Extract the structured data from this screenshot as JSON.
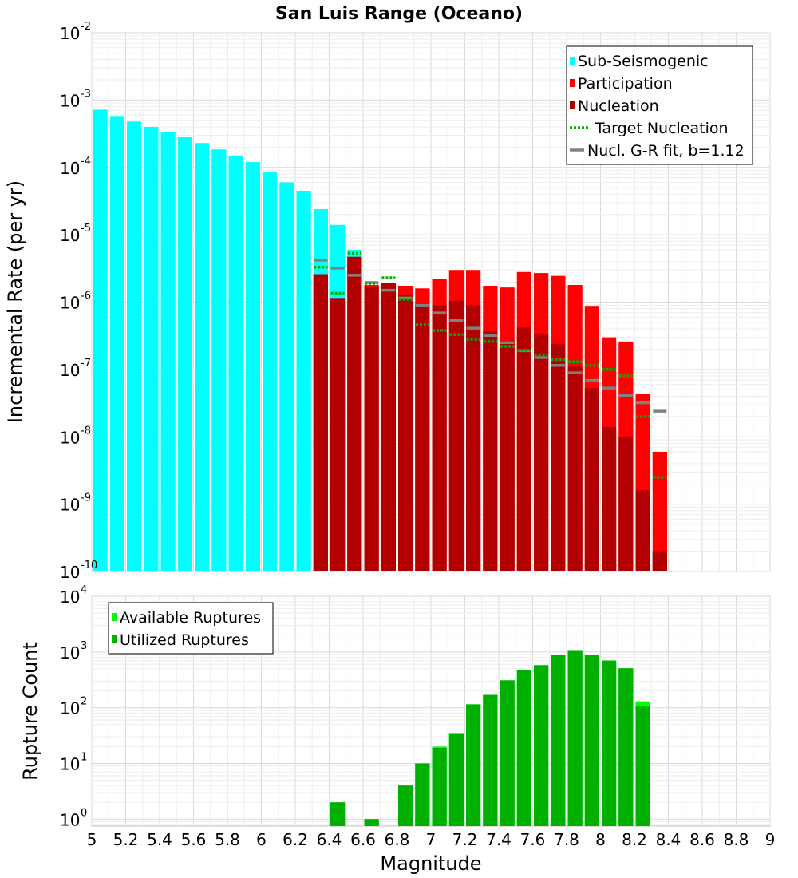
{
  "chart_data": [
    {
      "type": "bar",
      "title": "San Luis Range (Oceano)",
      "ylabel": "Incremental Rate (per yr)",
      "xlabel": "",
      "yscale": "log",
      "ylim": [
        1e-10,
        0.01
      ],
      "xlim": [
        5,
        9
      ],
      "y_ticks": [
        {
          "base": "10",
          "exp": "-10"
        },
        {
          "base": "10",
          "exp": "-9"
        },
        {
          "base": "10",
          "exp": "-8"
        },
        {
          "base": "10",
          "exp": "-7"
        },
        {
          "base": "10",
          "exp": "-6"
        },
        {
          "base": "10",
          "exp": "-5"
        },
        {
          "base": "10",
          "exp": "-4"
        },
        {
          "base": "10",
          "exp": "-3"
        },
        {
          "base": "10",
          "exp": "-2"
        }
      ],
      "legend_position": "top-right",
      "legend": [
        {
          "label": "Sub-Seismogenic",
          "color": "#00ffff",
          "symbol": "box"
        },
        {
          "label": "Participation",
          "color": "#ff0000",
          "symbol": "box"
        },
        {
          "label": "Nucleation",
          "color": "#b20000",
          "symbol": "box"
        },
        {
          "label": "Target Nucleation",
          "color": "#00b000",
          "symbol": "dotted"
        },
        {
          "label": "Nucl. G-R fit, b=1.12",
          "color": "#808080",
          "symbol": "line"
        }
      ],
      "series": [
        {
          "name": "Sub-Seismogenic",
          "color": "#00ffff",
          "x": [
            5.05,
            5.15,
            5.25,
            5.35,
            5.45,
            5.55,
            5.65,
            5.75,
            5.85,
            5.95,
            6.05,
            6.15,
            6.25,
            6.35,
            6.45,
            6.55
          ],
          "values": [
            0.00072,
            0.00058,
            0.00048,
            0.0004,
            0.00033,
            0.00028,
            0.00023,
            0.000185,
            0.00015,
            0.00012,
            8.5e-05,
            6e-05,
            4.5e-05,
            2.4e-05,
            1.4e-05,
            6e-06
          ]
        },
        {
          "name": "Participation",
          "color": "#ff0000",
          "x": [
            6.35,
            6.45,
            6.55,
            6.65,
            6.75,
            6.85,
            6.95,
            7.05,
            7.15,
            7.25,
            7.35,
            7.45,
            7.55,
            7.65,
            7.75,
            7.85,
            7.95,
            8.05,
            8.15,
            8.25,
            8.35
          ],
          "values": [
            2.6e-06,
            1.15e-06,
            4.7e-06,
            1.8e-06,
            1.9e-06,
            1.75e-06,
            1.6e-06,
            2.2e-06,
            3e-06,
            3e-06,
            1.75e-06,
            1.65e-06,
            2.8e-06,
            2.7e-06,
            2.45e-06,
            1.8e-06,
            8.8e-07,
            3e-07,
            2.6e-07,
            4.3e-08,
            6e-09
          ]
        },
        {
          "name": "Nucleation",
          "color": "#b20000",
          "x": [
            6.35,
            6.45,
            6.55,
            6.65,
            6.75,
            6.85,
            6.95,
            7.05,
            7.15,
            7.25,
            7.35,
            7.45,
            7.55,
            7.65,
            7.75,
            7.85,
            7.95,
            8.05,
            8.15,
            8.25,
            8.35
          ],
          "values": [
            2.6e-06,
            1.15e-06,
            4.7e-06,
            1.7e-06,
            1.9e-06,
            1.3e-06,
            9e-07,
            9e-07,
            1.05e-06,
            9e-07,
            3.7e-07,
            2.7e-07,
            4.2e-07,
            3.3e-07,
            2.4e-07,
            1.1e-07,
            5.3e-08,
            1.4e-08,
            1e-08,
            1.6e-09,
            2e-10
          ]
        },
        {
          "name": "Target Nucleation",
          "color": "#00b000",
          "x": [
            6.35,
            6.45,
            6.55,
            6.65,
            6.75,
            6.85,
            6.95,
            7.05,
            7.15,
            7.25,
            7.35,
            7.45,
            7.55,
            7.65,
            7.75,
            7.85,
            7.95,
            8.05,
            8.15,
            8.25,
            8.35
          ],
          "values": [
            3.3e-06,
            1.35e-06,
            5.3e-06,
            1.9e-06,
            2.3e-06,
            1.1e-06,
            4.6e-07,
            3.8e-07,
            3.3e-07,
            2.8e-07,
            2.6e-07,
            2.2e-07,
            1.9e-07,
            1.65e-07,
            1.4e-07,
            1.3e-07,
            1.15e-07,
            1e-07,
            8e-08,
            2e-08,
            2.5e-09
          ]
        },
        {
          "name": "Nucl. G-R fit, b=1.12",
          "color": "#808080",
          "x": [
            6.35,
            6.45,
            6.55,
            6.65,
            6.75,
            6.85,
            6.95,
            7.05,
            7.15,
            7.25,
            7.35,
            7.45,
            7.55,
            7.65,
            7.75,
            7.85,
            7.95,
            8.05,
            8.15,
            8.25,
            8.35
          ],
          "values": [
            4.2e-06,
            3.2e-06,
            2.5e-06,
            1.95e-06,
            1.5e-06,
            1.15e-06,
            8.9e-07,
            6.9e-07,
            5.3e-07,
            4.1e-07,
            3.2e-07,
            2.5e-07,
            1.9e-07,
            1.5e-07,
            1.15e-07,
            8.9e-08,
            6.9e-08,
            5.3e-08,
            4.1e-08,
            3.2e-08,
            2.4e-08
          ]
        }
      ]
    },
    {
      "type": "bar",
      "title": "",
      "ylabel": "Rupture Count",
      "xlabel": "Magnitude",
      "yscale": "log",
      "ylim": [
        0.75,
        10000
      ],
      "xlim": [
        5,
        9
      ],
      "y_ticks": [
        {
          "base": "10",
          "exp": "0"
        },
        {
          "base": "10",
          "exp": "1"
        },
        {
          "base": "10",
          "exp": "2"
        },
        {
          "base": "10",
          "exp": "3"
        },
        {
          "base": "10",
          "exp": "4"
        }
      ],
      "x_ticks": [
        "5",
        "5.2",
        "5.4",
        "5.6",
        "5.8",
        "6",
        "6.2",
        "6.4",
        "6.6",
        "6.8",
        "7",
        "7.2",
        "7.4",
        "7.6",
        "7.8",
        "8",
        "8.2",
        "8.4",
        "8.6",
        "8.8",
        "9"
      ],
      "legend_position": "top-left",
      "legend": [
        {
          "label": "Available Ruptures",
          "color": "#00ff00",
          "symbol": "box"
        },
        {
          "label": "Utilized Ruptures",
          "color": "#00b000",
          "symbol": "box"
        }
      ],
      "series": [
        {
          "name": "Available Ruptures",
          "color": "#00ff00",
          "x": [
            6.45,
            6.65,
            6.85,
            6.95,
            7.05,
            7.15,
            7.25,
            7.35,
            7.45,
            7.55,
            7.65,
            7.75,
            7.85,
            7.95,
            8.05,
            8.15,
            8.25
          ],
          "values": [
            2,
            1,
            4,
            10,
            20,
            35,
            115,
            170,
            310,
            470,
            580,
            900,
            1080,
            870,
            700,
            510,
            130
          ]
        },
        {
          "name": "Utilized Ruptures",
          "color": "#00b000",
          "x": [
            6.45,
            6.65,
            6.85,
            6.95,
            7.05,
            7.15,
            7.25,
            7.35,
            7.45,
            7.55,
            7.65,
            7.75,
            7.85,
            7.95,
            8.05,
            8.15,
            8.25
          ],
          "values": [
            2,
            1,
            4,
            10,
            19,
            35,
            115,
            170,
            310,
            470,
            580,
            900,
            1080,
            870,
            700,
            510,
            105
          ]
        }
      ]
    }
  ]
}
